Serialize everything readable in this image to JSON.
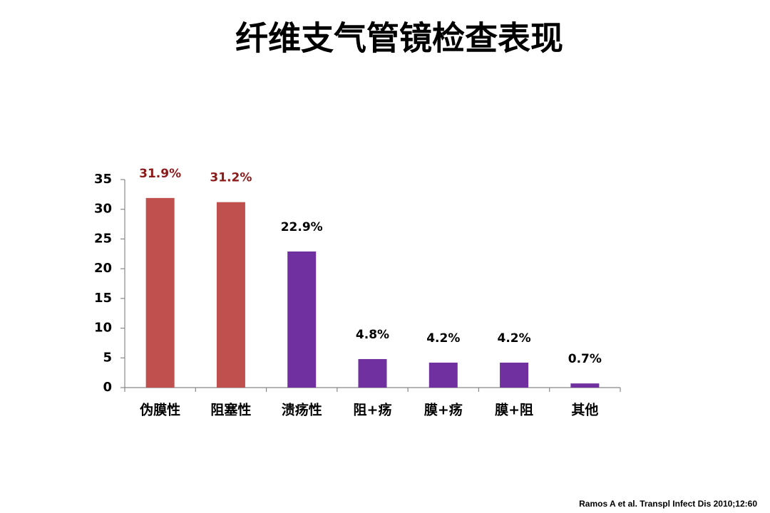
{
  "chart_data": {
    "type": "bar",
    "title": "纤维支气管镜检查表现",
    "categories": [
      "伪膜性",
      "阻塞性",
      "溃疡性",
      "阻+疡",
      "膜+疡",
      "膜+阻",
      "其他"
    ],
    "values": [
      31.9,
      31.2,
      22.9,
      4.8,
      4.2,
      4.2,
      0.7
    ],
    "value_labels": [
      "31.9%",
      "31.2%",
      "22.9%",
      "4.8%",
      "4.2%",
      "4.2%",
      "0.7%"
    ],
    "colors": [
      "#c0504d",
      "#c0504d",
      "#7030a0",
      "#7030a0",
      "#7030a0",
      "#7030a0",
      "#7030a0"
    ],
    "value_label_colors": [
      "#8b1a1a",
      "#8b1a1a",
      "#000000",
      "#000000",
      "#000000",
      "#000000",
      "#000000"
    ],
    "ylim": [
      0,
      35
    ],
    "yticks": [
      0,
      5,
      10,
      15,
      20,
      25,
      30,
      35
    ],
    "grid": false,
    "source": "Ramos A et al. Transpl Infect Dis 2010;12:60"
  }
}
